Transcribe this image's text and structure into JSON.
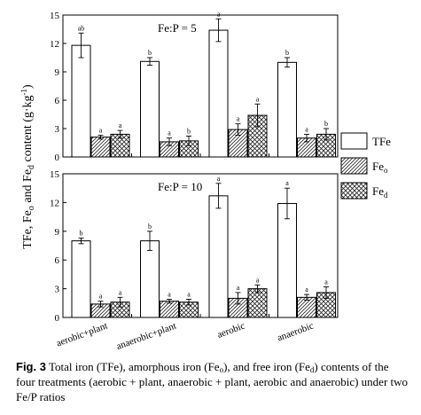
{
  "chart_data": [
    {
      "type": "bar",
      "panel_label": "Fe:P = 5",
      "categories": [
        "aerobic+plant",
        "anaerobic+plant",
        "aerobic",
        "anaerobic"
      ],
      "ylim": [
        0,
        15
      ],
      "yticks": [
        0,
        3,
        6,
        9,
        12,
        15
      ],
      "series": [
        {
          "name": "TFe",
          "values": [
            11.8,
            10.1,
            13.4,
            10.0
          ],
          "errors": [
            1.3,
            0.4,
            1.2,
            0.5
          ],
          "letters": [
            "ab",
            "b",
            "a",
            "b"
          ]
        },
        {
          "name": "Fe",
          "name_sub": "o",
          "values": [
            2.1,
            1.6,
            2.9,
            2.0
          ],
          "errors": [
            0.2,
            0.4,
            0.6,
            0.4
          ],
          "letters": [
            "a",
            "a",
            "a",
            "a"
          ]
        },
        {
          "name": "Fe",
          "name_sub": "d",
          "values": [
            2.4,
            1.7,
            4.4,
            2.4
          ],
          "errors": [
            0.4,
            0.5,
            1.2,
            0.6
          ],
          "letters": [
            "a",
            "b",
            "a",
            "b"
          ]
        }
      ]
    },
    {
      "type": "bar",
      "panel_label": "Fe:P = 10",
      "categories": [
        "aerobic+plant",
        "anaerobic+plant",
        "aerobic",
        "anaerobic"
      ],
      "ylim": [
        0,
        15
      ],
      "yticks": [
        0,
        3,
        6,
        9,
        12,
        15
      ],
      "series": [
        {
          "name": "TFe",
          "values": [
            8.0,
            8.0,
            12.7,
            11.9
          ],
          "errors": [
            0.3,
            1.0,
            1.3,
            1.6
          ],
          "letters": [
            "b",
            "b",
            "a",
            "a"
          ]
        },
        {
          "name": "Fe",
          "name_sub": "o",
          "values": [
            1.4,
            1.7,
            2.0,
            2.1
          ],
          "errors": [
            0.3,
            0.2,
            0.6,
            0.3
          ],
          "letters": [
            "a",
            "a",
            "a",
            "a"
          ]
        },
        {
          "name": "Fe",
          "name_sub": "d",
          "values": [
            1.6,
            1.6,
            3.0,
            2.6
          ],
          "errors": [
            0.5,
            0.3,
            0.4,
            0.6
          ],
          "letters": [
            "a",
            "a",
            "a",
            "a"
          ]
        }
      ]
    }
  ],
  "ylabel": {
    "part1": "TFe, Fe",
    "sub_o": "o",
    "part2": " and Fe",
    "sub_d": "d",
    "part3": " content (g·kg",
    "sup": "-1",
    "part4": ")"
  },
  "legend": [
    {
      "label": "TFe",
      "sub": "",
      "pattern": "white"
    },
    {
      "label": "Fe",
      "sub": "o",
      "pattern": "hatch"
    },
    {
      "label": "Fe",
      "sub": "d",
      "pattern": "cross"
    }
  ],
  "caption": {
    "fig_label": "Fig. 3",
    "t1": " Total iron (TFe), amorphous iron (Fe",
    "s1": "o",
    "t2": "), and free iron (Fe",
    "s2": "d",
    "t3": ") contents of the four treatments (aerobic + plant, anaerobic + plant, aerobic and anaerobic) under two Fe/P ratios"
  }
}
